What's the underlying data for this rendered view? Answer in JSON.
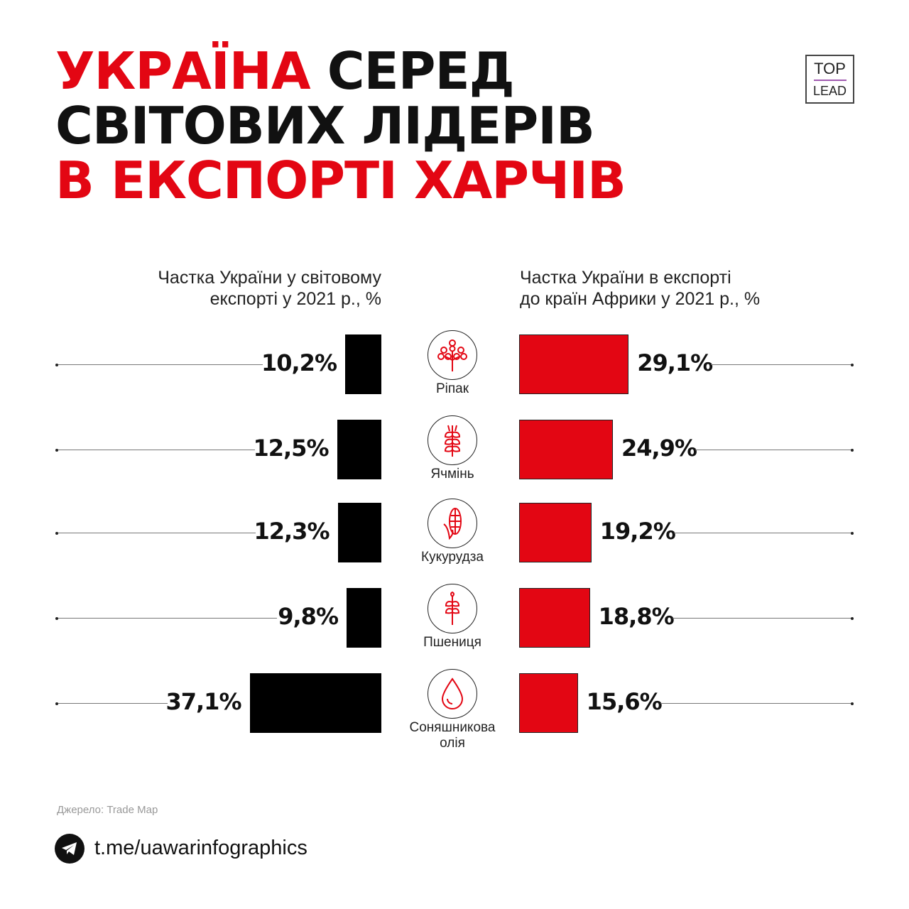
{
  "title": {
    "line1_red": "УКРАЇНА",
    "line1_black": " СЕРЕД",
    "line2": "СВІТОВИХ ЛІДЕРІВ",
    "line3": "В ЕКСПОРТІ ХАРЧІВ"
  },
  "logo": {
    "top": "TOP",
    "bottom": "LEAD"
  },
  "colors": {
    "accent": "#e30613",
    "dark": "#000000"
  },
  "chart_data": {
    "type": "bar",
    "categories": [
      "Ріпак",
      "Ячмінь",
      "Кукурудза",
      "Пшениця",
      "Соняшникова олія"
    ],
    "category_icons": [
      "rapeseed-icon",
      "barley-icon",
      "corn-icon",
      "wheat-icon",
      "oil-drop-icon"
    ],
    "series": [
      {
        "name": "Частка України у світовому експорті у 2021 р., %",
        "values": [
          10.2,
          12.5,
          12.3,
          9.8,
          37.1
        ],
        "labels": [
          "10,2%",
          "12,5%",
          "12,3%",
          "9,8%",
          "37,1%"
        ],
        "color": "#000000",
        "side": "left"
      },
      {
        "name": "Частка України в експорті до країн Африки у 2021 р., %",
        "values": [
          29.1,
          24.9,
          19.2,
          18.8,
          15.6
        ],
        "labels": [
          "29,1%",
          "24,9%",
          "19,2%",
          "18,8%",
          "15,6%"
        ],
        "color": "#e30613",
        "side": "right"
      }
    ],
    "headers": {
      "left": [
        "Частка України у світовому",
        "експорті у 2021 р., %"
      ],
      "right": [
        "Частка України в експорті",
        "до країн Африки у 2021 р., %"
      ]
    },
    "grid": false
  },
  "footer": {
    "source": "Джерело: Trade Map",
    "link": "t.me/uawarinfographics"
  }
}
